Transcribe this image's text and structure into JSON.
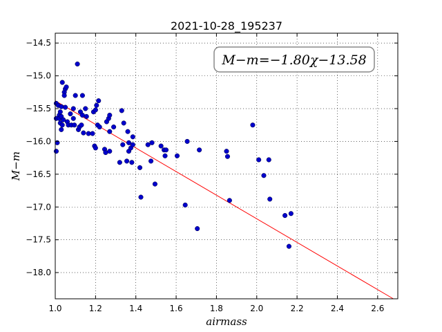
{
  "chart_data": {
    "type": "scatter",
    "title": "2021-10-28_195237",
    "xlabel": "airmass",
    "ylabel": "M−m",
    "xlim": [
      1.0,
      2.7
    ],
    "ylim": [
      -18.4,
      -14.35
    ],
    "y_inverted": true,
    "xticks": [
      "1.0",
      "1.2",
      "1.4",
      "1.6",
      "1.8",
      "2.0",
      "2.2",
      "2.4",
      "2.6"
    ],
    "yticks": [
      "−14.5",
      "−15.0",
      "−15.5",
      "−16.0",
      "−16.5",
      "−17.0",
      "−17.5",
      "−18.0"
    ],
    "grid": true,
    "annotation": "M−m=−1.80χ−13.58",
    "fit_line": {
      "slope": -1.8,
      "intercept": -13.58,
      "color": "#ff0000"
    },
    "point_color": "#0000cc",
    "points": [
      [
        1.005,
        -15.42
      ],
      [
        1.005,
        -15.65
      ],
      [
        1.005,
        -16.15
      ],
      [
        1.01,
        -16.02
      ],
      [
        1.015,
        -15.45
      ],
      [
        1.02,
        -15.6
      ],
      [
        1.02,
        -15.65
      ],
      [
        1.025,
        -15.55
      ],
      [
        1.025,
        -15.72
      ],
      [
        1.03,
        -15.47
      ],
      [
        1.03,
        -15.62
      ],
      [
        1.03,
        -15.82
      ],
      [
        1.035,
        -15.75
      ],
      [
        1.035,
        -15.1
      ],
      [
        1.04,
        -15.67
      ],
      [
        1.045,
        -15.25
      ],
      [
        1.045,
        -15.3
      ],
      [
        1.05,
        -15.2
      ],
      [
        1.05,
        -15.48
      ],
      [
        1.055,
        -15.17
      ],
      [
        1.06,
        -15.7
      ],
      [
        1.065,
        -15.75
      ],
      [
        1.075,
        -15.58
      ],
      [
        1.08,
        -15.75
      ],
      [
        1.09,
        -15.5
      ],
      [
        1.09,
        -15.65
      ],
      [
        1.095,
        -15.75
      ],
      [
        1.1,
        -15.3
      ],
      [
        1.11,
        -14.82
      ],
      [
        1.115,
        -15.82
      ],
      [
        1.12,
        -15.78
      ],
      [
        1.125,
        -15.55
      ],
      [
        1.13,
        -15.75
      ],
      [
        1.135,
        -15.6
      ],
      [
        1.135,
        -15.3
      ],
      [
        1.14,
        -15.87
      ],
      [
        1.15,
        -15.5
      ],
      [
        1.155,
        -15.62
      ],
      [
        1.165,
        -15.88
      ],
      [
        1.185,
        -15.88
      ],
      [
        1.19,
        -15.55
      ],
      [
        1.195,
        -16.07
      ],
      [
        1.2,
        -16.1
      ],
      [
        1.2,
        -15.52
      ],
      [
        1.205,
        -15.45
      ],
      [
        1.21,
        -15.75
      ],
      [
        1.215,
        -15.38
      ],
      [
        1.22,
        -15.78
      ],
      [
        1.245,
        -16.12
      ],
      [
        1.25,
        -16.17
      ],
      [
        1.255,
        -15.7
      ],
      [
        1.265,
        -15.65
      ],
      [
        1.27,
        -15.6
      ],
      [
        1.27,
        -15.85
      ],
      [
        1.27,
        -16.15
      ],
      [
        1.29,
        -15.78
      ],
      [
        1.32,
        -16.32
      ],
      [
        1.33,
        -15.53
      ],
      [
        1.335,
        -16.05
      ],
      [
        1.34,
        -15.72
      ],
      [
        1.355,
        -16.3
      ],
      [
        1.36,
        -15.85
      ],
      [
        1.365,
        -16.02
      ],
      [
        1.365,
        -16.15
      ],
      [
        1.375,
        -16.1
      ],
      [
        1.38,
        -16.32
      ],
      [
        1.385,
        -16.05
      ],
      [
        1.385,
        -15.93
      ],
      [
        1.42,
        -16.4
      ],
      [
        1.425,
        -16.85
      ],
      [
        1.46,
        -16.05
      ],
      [
        1.475,
        -16.3
      ],
      [
        1.48,
        -16.02
      ],
      [
        1.495,
        -16.65
      ],
      [
        1.525,
        -16.07
      ],
      [
        1.54,
        -16.13
      ],
      [
        1.545,
        -16.22
      ],
      [
        1.55,
        -16.13
      ],
      [
        1.605,
        -16.22
      ],
      [
        1.645,
        -16.97
      ],
      [
        1.655,
        -16.0
      ],
      [
        1.705,
        -17.33
      ],
      [
        1.715,
        -16.13
      ],
      [
        1.85,
        -16.15
      ],
      [
        1.855,
        -16.23
      ],
      [
        1.865,
        -16.9
      ],
      [
        1.98,
        -15.75
      ],
      [
        2.01,
        -16.28
      ],
      [
        2.035,
        -16.52
      ],
      [
        2.06,
        -16.28
      ],
      [
        2.065,
        -16.88
      ],
      [
        2.14,
        -17.13
      ],
      [
        2.16,
        -17.6
      ],
      [
        2.17,
        -17.1
      ]
    ]
  }
}
